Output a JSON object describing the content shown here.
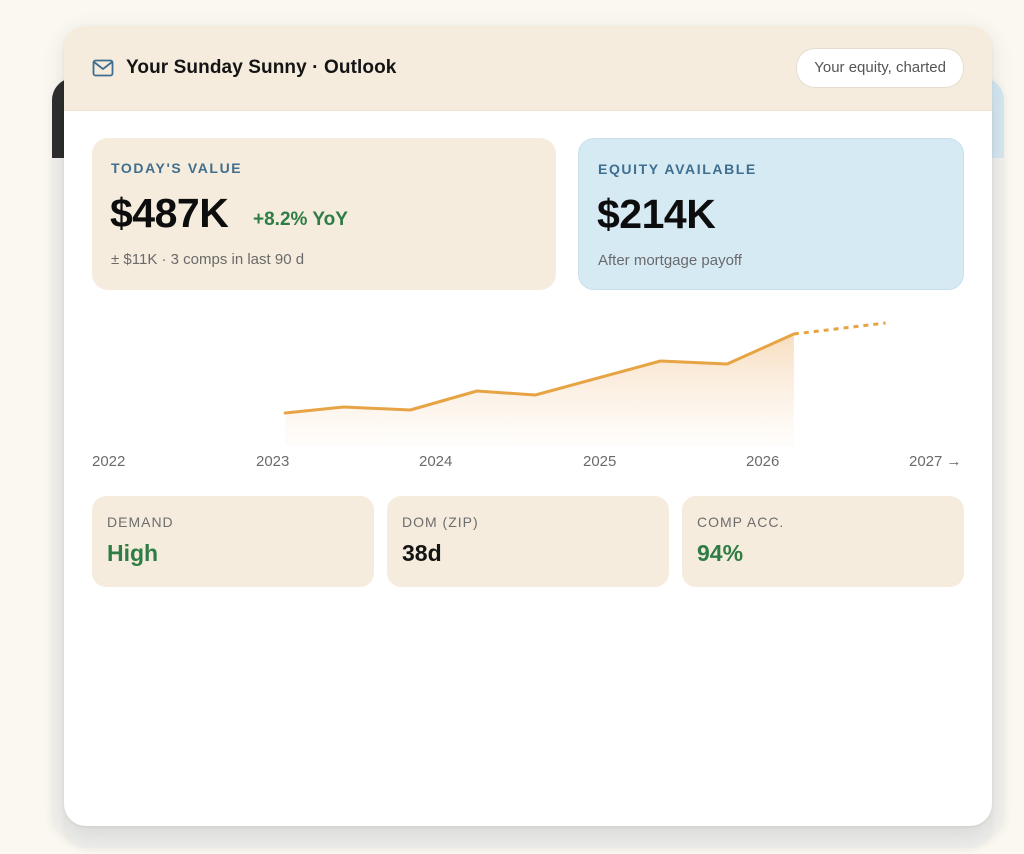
{
  "header": {
    "title": "Your Sunday Sunny · Outlook",
    "pill_label": "Your equity, charted",
    "icon": "mail-icon"
  },
  "value_panel": {
    "label": "TODAY'S VALUE",
    "value": "$487K",
    "change": "+8.2% YoY",
    "sub": "± $11K · 3 comps in last 90 d"
  },
  "equity_panel": {
    "label": "EQUITY AVAILABLE",
    "value": "$214K",
    "sub": "After mortgage payoff"
  },
  "chart_data": {
    "type": "line",
    "title": "",
    "xlabel": "",
    "ylabel": "",
    "x_ticks": [
      "2022",
      "2023",
      "2024",
      "2025",
      "2026",
      "2027 →"
    ],
    "xlim": [
      2022,
      2027
    ],
    "series": [
      {
        "style": "solid",
        "color": "#e7a444",
        "x": [
          2023.05,
          2023.4,
          2023.8,
          2024.2,
          2024.55,
          2025.3,
          2025.7,
          2026.1
        ],
        "y": [
          0.27,
          0.33,
          0.3,
          0.49,
          0.45,
          0.79,
          0.76,
          1.06
        ]
      },
      {
        "style": "dashed",
        "color": "#e7a444",
        "x": [
          2026.1,
          2026.65
        ],
        "y": [
          1.06,
          1.17
        ]
      }
    ],
    "area_fill": true,
    "grid": false,
    "legend": "none"
  },
  "stats": [
    {
      "label": "DEMAND",
      "value": "High",
      "color": "#2e7d44"
    },
    {
      "label": "DOM (ZIP)",
      "value": "38d",
      "color": "#141414"
    },
    {
      "label": "COMP ACC.",
      "value": "94%",
      "color": "#2e7d44"
    }
  ]
}
